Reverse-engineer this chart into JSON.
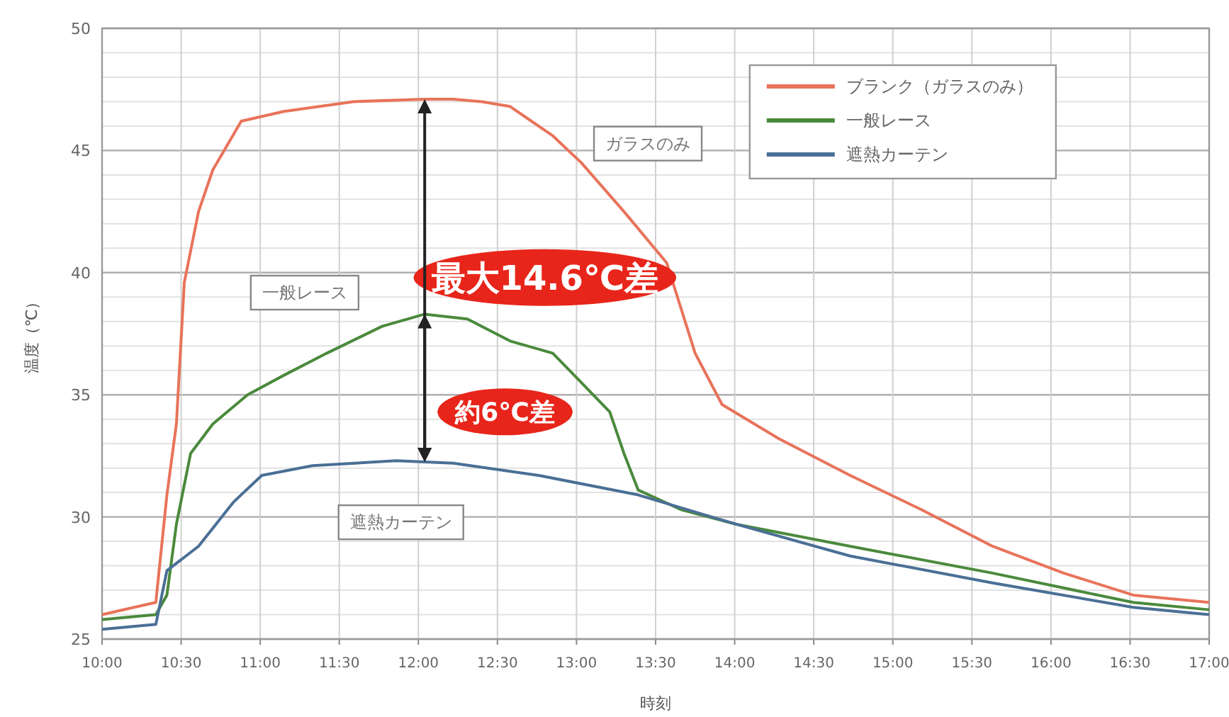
{
  "chart_data": {
    "type": "line",
    "xlabel": "時刻",
    "ylabel": "温度（℃）",
    "xlim": [
      10,
      17
    ],
    "ylim": [
      25,
      50
    ],
    "xticks": [
      {
        "value": 10,
        "label": "10:00"
      },
      {
        "value": 10.5,
        "label": "10:30"
      },
      {
        "value": 11,
        "label": "11:00"
      },
      {
        "value": 11.5,
        "label": "11:30"
      },
      {
        "value": 12,
        "label": "12:00"
      },
      {
        "value": 12.5,
        "label": "12:30"
      },
      {
        "value": 13,
        "label": "13:00"
      },
      {
        "value": 13.5,
        "label": "13:30"
      },
      {
        "value": 14,
        "label": "14:00"
      },
      {
        "value": 14.5,
        "label": "14:30"
      },
      {
        "value": 15,
        "label": "15:00"
      },
      {
        "value": 15.5,
        "label": "15:30"
      },
      {
        "value": 16,
        "label": "16:00"
      },
      {
        "value": 16.5,
        "label": "16:30"
      },
      {
        "value": 17,
        "label": "17:00"
      }
    ],
    "yticks": [
      25,
      30,
      35,
      40,
      45,
      50
    ],
    "grid": true,
    "legend": "top right",
    "marker": "none",
    "line_style": "solid",
    "series": [
      {
        "name": "ブランク（ガラスのみ）",
        "color": "#e8735a",
        "x": [
          10,
          10.34,
          10.41,
          10.47,
          10.52,
          10.61,
          10.7,
          10.88,
          11.15,
          11.59,
          12.04,
          12.22,
          12.4,
          12.58,
          12.85,
          13.03,
          13.3,
          13.57,
          13.75,
          13.92,
          14.28,
          14.73,
          15.18,
          15.63,
          16.08,
          16.52,
          17
        ],
        "values": [
          26,
          26.5,
          30.9,
          33.8,
          39.6,
          42.5,
          44.2,
          46.2,
          46.6,
          47,
          47.1,
          47.1,
          47,
          46.8,
          45.6,
          44.5,
          42.5,
          40.4,
          36.7,
          34.6,
          33.2,
          31.7,
          30.3,
          28.8,
          27.7,
          26.8,
          26.5
        ]
      },
      {
        "name": "一般レース",
        "color": "#4a8a3c",
        "x": [
          10,
          10.34,
          10.41,
          10.47,
          10.56,
          10.7,
          10.92,
          11.15,
          11.42,
          11.77,
          12.04,
          12.31,
          12.58,
          12.85,
          13.03,
          13.21,
          13.3,
          13.39,
          13.66,
          14.01,
          14.73,
          15.63,
          16.52,
          17
        ],
        "values": [
          25.8,
          26,
          26.8,
          29.7,
          32.6,
          33.8,
          35,
          35.8,
          36.7,
          37.8,
          38.3,
          38.1,
          37.2,
          36.7,
          35.5,
          34.3,
          32.6,
          31.1,
          30.3,
          29.7,
          28.8,
          27.7,
          26.5,
          26.2
        ]
      },
      {
        "name": "遮熱カーテン",
        "color": "#4a6f96",
        "x": [
          10,
          10.34,
          10.41,
          10.61,
          10.83,
          11.01,
          11.33,
          11.86,
          12.22,
          12.76,
          13.39,
          14.01,
          14.73,
          15.63,
          16.52,
          17
        ],
        "values": [
          25.4,
          25.6,
          27.8,
          28.8,
          30.6,
          31.7,
          32.1,
          32.3,
          32.2,
          31.7,
          30.9,
          29.7,
          28.4,
          27.3,
          26.3,
          26
        ]
      }
    ],
    "annotations": [
      "ガラスのみ",
      "一般レース",
      "遮熱カーテン",
      "最大14.6℃差",
      "約6℃差"
    ]
  }
}
